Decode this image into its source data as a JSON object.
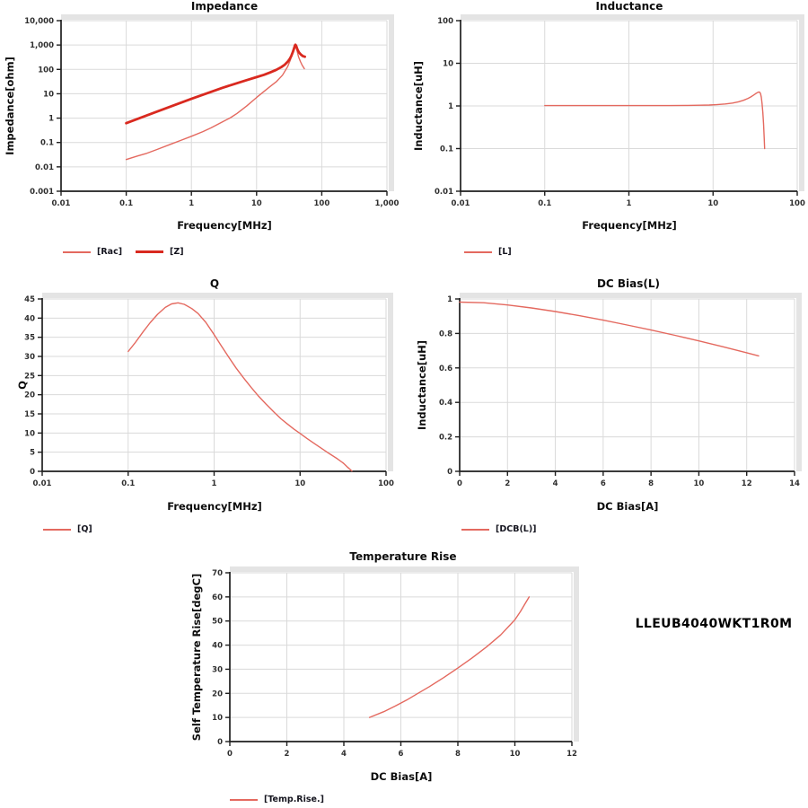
{
  "part_number": "LLEUB4040WKT1R0M",
  "colors": {
    "series_thin": "#e4695f",
    "series_thick": "#d9291f",
    "grid": "#dadada",
    "axis": "#1f1f1f",
    "bevel": "#e4e4e4",
    "tick_text": "#2e2e2e"
  },
  "chart_data": [
    {
      "type": "line",
      "title": "Impedance",
      "xlabel": "Frequency[MHz]",
      "ylabel": "Impedance[ohm]",
      "x_scale": "log",
      "y_scale": "log",
      "xlim": [
        0.01,
        1000
      ],
      "ylim": [
        0.001,
        10000
      ],
      "grid": true,
      "legend_position": "below-left",
      "x_ticks": {
        "values": [
          0.01,
          0.1,
          1,
          10,
          100,
          1000
        ],
        "labels": [
          "0.01",
          "0.1",
          "1",
          "10",
          "100",
          "1,000"
        ]
      },
      "y_ticks": {
        "values": [
          10000,
          1000,
          100,
          10,
          1,
          0.1,
          0.01,
          0.001
        ],
        "labels": [
          "10,000",
          "1,000",
          "100",
          "10",
          "1",
          "0.1",
          "0.01",
          "0.001"
        ]
      },
      "series": [
        {
          "name": "[Rac]",
          "weight": "thin",
          "points": [
            [
              0.1,
              0.02
            ],
            [
              0.15,
              0.028
            ],
            [
              0.2,
              0.035
            ],
            [
              0.3,
              0.052
            ],
            [
              0.5,
              0.088
            ],
            [
              0.7,
              0.125
            ],
            [
              1,
              0.18
            ],
            [
              1.5,
              0.28
            ],
            [
              2,
              0.4
            ],
            [
              3,
              0.7
            ],
            [
              4,
              1.05
            ],
            [
              5,
              1.55
            ],
            [
              7,
              3.1
            ],
            [
              10,
              7
            ],
            [
              13,
              12.5
            ],
            [
              16,
              19.5
            ],
            [
              20,
              31
            ],
            [
              25,
              58
            ],
            [
              30,
              130
            ],
            [
              33,
              240
            ],
            [
              35,
              400
            ],
            [
              37,
              640
            ],
            [
              38.5,
              850
            ],
            [
              39.5,
              960
            ],
            [
              40.5,
              850
            ],
            [
              42,
              560
            ],
            [
              44,
              330
            ],
            [
              47,
              210
            ],
            [
              50,
              150
            ],
            [
              54,
              107
            ]
          ]
        },
        {
          "name": "[Z]",
          "weight": "thick",
          "points": [
            [
              0.1,
              0.62
            ],
            [
              0.2,
              1.25
            ],
            [
              0.5,
              3.1
            ],
            [
              1,
              6.2
            ],
            [
              2,
              12
            ],
            [
              3,
              17.5
            ],
            [
              5,
              27
            ],
            [
              7,
              36
            ],
            [
              10,
              48
            ],
            [
              13,
              60
            ],
            [
              16,
              74
            ],
            [
              20,
              96
            ],
            [
              24,
              125
            ],
            [
              27,
              155
            ],
            [
              30,
              205
            ],
            [
              32,
              260
            ],
            [
              34,
              350
            ],
            [
              36,
              520
            ],
            [
              37.5,
              720
            ],
            [
              38.8,
              950
            ],
            [
              39.5,
              1030
            ],
            [
              40.5,
              920
            ],
            [
              41.5,
              750
            ],
            [
              43,
              600
            ],
            [
              45,
              490
            ],
            [
              48,
              400
            ],
            [
              51,
              355
            ],
            [
              55,
              330
            ]
          ]
        }
      ]
    },
    {
      "type": "line",
      "title": "Inductance",
      "xlabel": "Frequency[MHz]",
      "ylabel": "Inductance[uH]",
      "x_scale": "log",
      "y_scale": "log",
      "xlim": [
        0.01,
        100
      ],
      "ylim": [
        0.01,
        100
      ],
      "grid": true,
      "legend_position": "below-left",
      "x_ticks": {
        "values": [
          0.01,
          0.1,
          1,
          10,
          100
        ],
        "labels": [
          "0.01",
          "0.1",
          "1",
          "10",
          "100"
        ]
      },
      "y_ticks": {
        "values": [
          100,
          10,
          1,
          0.1,
          0.01
        ],
        "labels": [
          "100",
          "10",
          "1",
          "0.1",
          "0.01"
        ]
      },
      "series": [
        {
          "name": "[L]",
          "weight": "thin",
          "points": [
            [
              0.1,
              1.02
            ],
            [
              0.3,
              1.02
            ],
            [
              1,
              1.02
            ],
            [
              2,
              1.02
            ],
            [
              3,
              1.02
            ],
            [
              5,
              1.03
            ],
            [
              7,
              1.04
            ],
            [
              9,
              1.05
            ],
            [
              11,
              1.07
            ],
            [
              14,
              1.11
            ],
            [
              17,
              1.17
            ],
            [
              20,
              1.25
            ],
            [
              23,
              1.36
            ],
            [
              26,
              1.5
            ],
            [
              28,
              1.62
            ],
            [
              30,
              1.77
            ],
            [
              32,
              1.93
            ],
            [
              33.5,
              2.05
            ],
            [
              34.8,
              2.12
            ],
            [
              35.8,
              2.1
            ],
            [
              36.6,
              1.95
            ],
            [
              37.4,
              1.6
            ],
            [
              38.2,
              1.15
            ],
            [
              39,
              0.7
            ],
            [
              39.8,
              0.38
            ],
            [
              40.5,
              0.18
            ],
            [
              41,
              0.1
            ]
          ]
        }
      ]
    },
    {
      "type": "line",
      "title": "Q",
      "xlabel": "Frequency[MHz]",
      "ylabel": "Q",
      "x_scale": "log",
      "y_scale": "linear",
      "xlim": [
        0.01,
        100
      ],
      "ylim": [
        0,
        45
      ],
      "grid": true,
      "legend_position": "below-left",
      "x_ticks": {
        "values": [
          0.01,
          0.1,
          1,
          10,
          100
        ],
        "labels": [
          "0.01",
          "0.1",
          "1",
          "10",
          "100"
        ]
      },
      "y_ticks": {
        "values": [
          45,
          40,
          35,
          30,
          25,
          20,
          15,
          10,
          5,
          0
        ],
        "labels": [
          "45",
          "40",
          "35",
          "30",
          "25",
          "20",
          "15",
          "10",
          "5",
          "0"
        ]
      },
      "series": [
        {
          "name": "[Q]",
          "weight": "thin",
          "points": [
            [
              0.1,
              31.3
            ],
            [
              0.12,
              33.5
            ],
            [
              0.15,
              36.5
            ],
            [
              0.18,
              38.8
            ],
            [
              0.22,
              41
            ],
            [
              0.27,
              42.8
            ],
            [
              0.32,
              43.7
            ],
            [
              0.38,
              44
            ],
            [
              0.45,
              43.6
            ],
            [
              0.55,
              42.5
            ],
            [
              0.65,
              41.2
            ],
            [
              0.8,
              38.9
            ],
            [
              1,
              35.7
            ],
            [
              1.2,
              32.9
            ],
            [
              1.5,
              29.6
            ],
            [
              1.8,
              27
            ],
            [
              2.2,
              24.4
            ],
            [
              2.7,
              21.9
            ],
            [
              3.3,
              19.6
            ],
            [
              4,
              17.6
            ],
            [
              5,
              15.4
            ],
            [
              6,
              13.7
            ],
            [
              7,
              12.5
            ],
            [
              8.5,
              11
            ],
            [
              10,
              9.9
            ],
            [
              12,
              8.6
            ],
            [
              15,
              7.1
            ],
            [
              18,
              5.9
            ],
            [
              22,
              4.6
            ],
            [
              27,
              3.3
            ],
            [
              32,
              2.1
            ],
            [
              36,
              1
            ],
            [
              40,
              0.1
            ]
          ]
        }
      ]
    },
    {
      "type": "line",
      "title": "DC Bias(L)",
      "xlabel": "DC Bias[A]",
      "ylabel": "Inductance[uH]",
      "x_scale": "linear",
      "y_scale": "linear",
      "xlim": [
        0,
        14
      ],
      "ylim": [
        0,
        1
      ],
      "grid": true,
      "legend_position": "below-left",
      "x_ticks": {
        "values": [
          0,
          2,
          4,
          6,
          8,
          10,
          12,
          14
        ],
        "labels": [
          "0",
          "2",
          "4",
          "6",
          "8",
          "10",
          "12",
          "14"
        ]
      },
      "y_ticks": {
        "values": [
          1,
          0.8,
          0.6,
          0.4,
          0.2,
          0
        ],
        "labels": [
          "1",
          "0.8",
          "0.6",
          "0.4",
          "0.2",
          "0"
        ]
      },
      "series": [
        {
          "name": "[DCB(L)]",
          "weight": "thin",
          "points": [
            [
              0,
              0.982
            ],
            [
              1,
              0.978
            ],
            [
              2,
              0.965
            ],
            [
              3,
              0.948
            ],
            [
              4,
              0.927
            ],
            [
              5,
              0.903
            ],
            [
              6,
              0.877
            ],
            [
              7,
              0.849
            ],
            [
              8,
              0.82
            ],
            [
              9,
              0.789
            ],
            [
              10,
              0.757
            ],
            [
              11,
              0.723
            ],
            [
              12,
              0.688
            ],
            [
              12.5,
              0.67
            ]
          ]
        }
      ]
    },
    {
      "type": "line",
      "title": "Temperature Rise",
      "xlabel": "DC Bias[A]",
      "ylabel": "Self Temperature Rise[degC]",
      "x_scale": "linear",
      "y_scale": "linear",
      "xlim": [
        0,
        12
      ],
      "ylim": [
        0,
        70
      ],
      "grid": true,
      "legend_position": "below-left",
      "x_ticks": {
        "values": [
          0,
          2,
          4,
          6,
          8,
          10,
          12
        ],
        "labels": [
          "0",
          "2",
          "4",
          "6",
          "8",
          "10",
          "12"
        ]
      },
      "y_ticks": {
        "values": [
          70,
          60,
          50,
          40,
          30,
          20,
          10,
          0
        ],
        "labels": [
          "70",
          "60",
          "50",
          "40",
          "30",
          "20",
          "10",
          "0"
        ]
      },
      "series": [
        {
          "name": "[Temp.Rise.]",
          "weight": "thin",
          "points": [
            [
              4.9,
              10
            ],
            [
              5.4,
              12.4
            ],
            [
              5.8,
              14.7
            ],
            [
              6.2,
              17.2
            ],
            [
              6.6,
              20
            ],
            [
              7,
              22.8
            ],
            [
              7.5,
              26.5
            ],
            [
              8,
              30.5
            ],
            [
              8.5,
              34.7
            ],
            [
              9,
              39.2
            ],
            [
              9.5,
              44.2
            ],
            [
              10,
              50.5
            ],
            [
              10.2,
              54
            ],
            [
              10.35,
              57
            ],
            [
              10.5,
              60
            ]
          ]
        }
      ]
    }
  ]
}
